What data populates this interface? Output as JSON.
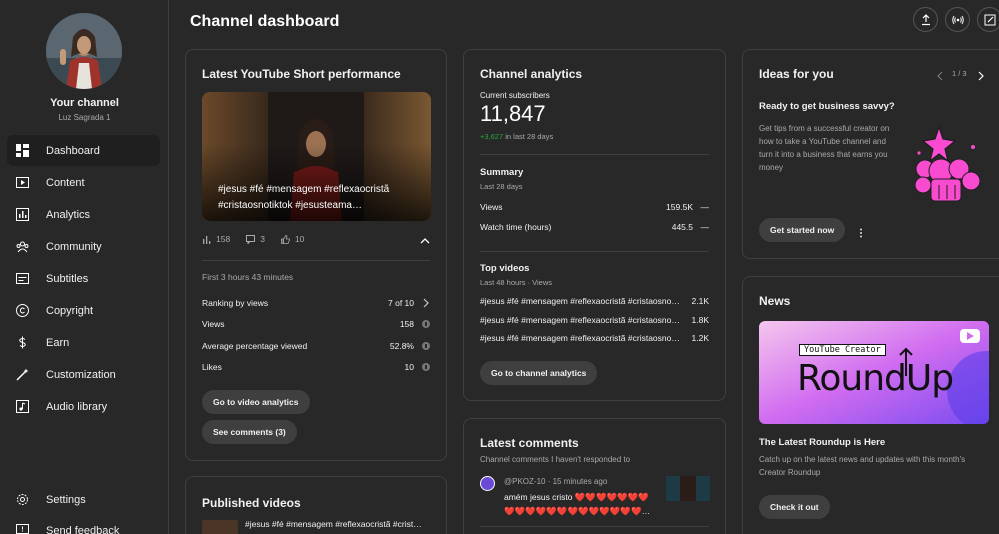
{
  "sidebar": {
    "your_channel": "Your channel",
    "channel_name": "Luz Sagrada 1",
    "items": [
      {
        "label": "Dashboard",
        "icon": "dashboard-icon"
      },
      {
        "label": "Content",
        "icon": "content-icon"
      },
      {
        "label": "Analytics",
        "icon": "analytics-icon"
      },
      {
        "label": "Community",
        "icon": "community-icon"
      },
      {
        "label": "Subtitles",
        "icon": "subtitles-icon"
      },
      {
        "label": "Copyright",
        "icon": "copyright-icon"
      },
      {
        "label": "Earn",
        "icon": "earn-icon"
      },
      {
        "label": "Customization",
        "icon": "customization-icon"
      },
      {
        "label": "Audio library",
        "icon": "audio-library-icon"
      }
    ],
    "settings": "Settings",
    "feedback": "Send feedback"
  },
  "header": {
    "title": "Channel dashboard"
  },
  "short": {
    "title": "Latest YouTube Short performance",
    "caption_line1": "#jesus #fé #mensagem #reflexaocristã",
    "caption_line2": "#cristaosnotiktok #jesusteama…",
    "views": "158",
    "comments": "3",
    "likes": "10",
    "first_time": "First 3 hours 43 minutes",
    "rows": [
      {
        "label": "Ranking by views",
        "value": "7 of 10"
      },
      {
        "label": "Views",
        "value": "158"
      },
      {
        "label": "Average percentage viewed",
        "value": "52.8%"
      },
      {
        "label": "Likes",
        "value": "10"
      }
    ],
    "btn_analytics": "Go to video analytics",
    "btn_comments": "See comments (3)"
  },
  "published": {
    "title": "Published videos",
    "first_video": "#jesus #fé #mensagem #reflexaocristã #crist…"
  },
  "analytics": {
    "title": "Channel analytics",
    "subs_label": "Current subscribers",
    "subs_value": "11,847",
    "subs_change": "+3,627",
    "subs_period": "in last 28 days",
    "summary_title": "Summary",
    "summary_period": "Last 28 days",
    "summary_rows": [
      {
        "label": "Views",
        "value": "159.5K",
        "trend": "—"
      },
      {
        "label": "Watch time (hours)",
        "value": "445.5",
        "trend": "—"
      }
    ],
    "top_title": "Top videos",
    "top_period": "Last 48 hours · Views",
    "top_rows": [
      {
        "label": "#jesus #fé #mensagem #reflexaocristã #cristaosno…",
        "value": "2.1K"
      },
      {
        "label": "#jesus #fé #mensagem #reflexaocristã #cristaosno…",
        "value": "1.8K"
      },
      {
        "label": "#jesus #fé #mensagem #reflexaocristã #cristaosno…",
        "value": "1.2K"
      }
    ],
    "btn": "Go to channel analytics"
  },
  "comments": {
    "title": "Latest comments",
    "subtitle": "Channel comments I haven't responded to",
    "author": "@PKOZ-10 · 15 minutes ago",
    "text_line1": "amém jesus cristo ❤️❤️❤️❤️❤️❤️❤️",
    "text_line2": "❤️❤️❤️❤️❤️❤️❤️❤️❤️❤️❤️❤️❤️…"
  },
  "ideas": {
    "title": "Ideas for you",
    "pager": "1 / 3",
    "heading": "Ready to get business savvy?",
    "body": "Get tips from a successful creator on how to take a YouTube channel and turn it into a business that earns you money",
    "btn": "Get started now"
  },
  "news": {
    "title": "News",
    "banner_tag": "YouTube Creator",
    "banner_main": "RoundUp",
    "heading": "The Latest Roundup is Here",
    "body": "Catch up on the latest news and updates with this month's Creator Roundup",
    "btn": "Check it out"
  },
  "colors": {
    "bg": "#282828",
    "card_border": "#3f3f3f",
    "positive": "#2ba640",
    "pink": "#f94bd0"
  }
}
